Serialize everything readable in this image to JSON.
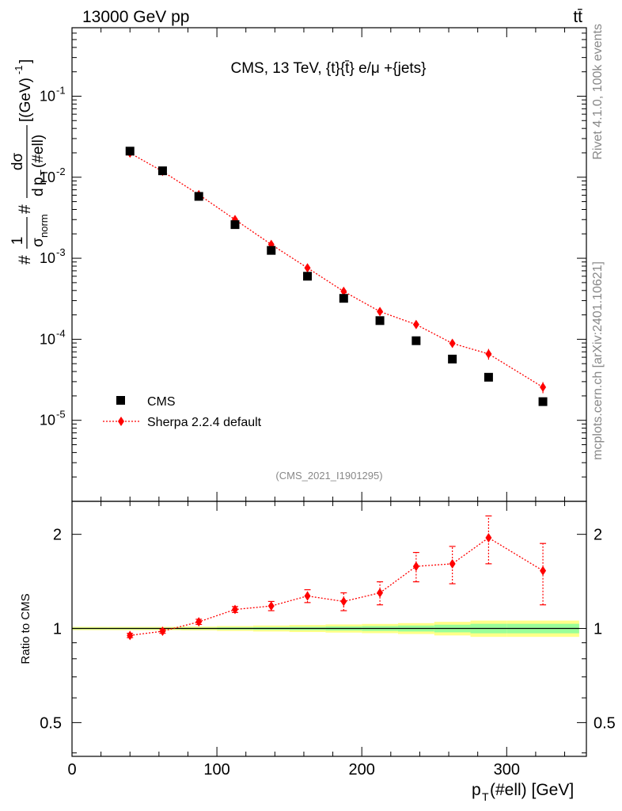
{
  "header": {
    "left": "13000 GeV pp",
    "right": "tt̄"
  },
  "side_labels": {
    "top": "Rivet 4.1.0,  100k events",
    "bottom": "mcplots.cern.ch [arXiv:2401.10621]"
  },
  "analysis_id": "(CMS_2021_I1901295)",
  "colors": {
    "data": "#000000",
    "mc": "#ff0000",
    "band_inner": "#99ff99",
    "band_outer": "#ffff88"
  },
  "chart_data": [
    {
      "type": "scatter",
      "panel": "main",
      "title": "CMS, 13 TeV, {t}{t̄} e/μ +{jets}",
      "ylabel": "#σnorm #d p_T(#ell)",
      "ylabel_parts": {
        "hash1": "#",
        "num1": "1",
        "sigma": "σ",
        "norm": "norm",
        "hash2": "#",
        "num2": "dσ",
        "d": "d",
        "p": "p",
        "T": "T",
        "arg": "(#ell)",
        "units": "[(GeV)",
        "units_exp": "-1",
        "units_close": "]"
      },
      "yscale": "log",
      "xlim": [
        0,
        355
      ],
      "ylim": [
        1e-06,
        0.7
      ],
      "ytick_labels": [
        {
          "base": "10",
          "exp": "-1",
          "value": 0.1
        },
        {
          "base": "10",
          "exp": "-2",
          "value": 0.01
        },
        {
          "base": "10",
          "exp": "-3",
          "value": 0.001
        },
        {
          "base": "10",
          "exp": "-4",
          "value": 0.0001
        },
        {
          "base": "10",
          "exp": "-5",
          "value": 1e-05
        }
      ],
      "legend": {
        "position": "lower-left",
        "entries": [
          "CMS",
          "Sherpa 2.2.4 default"
        ]
      },
      "series": [
        {
          "name": "CMS",
          "marker": "square",
          "x": [
            40,
            62.5,
            87.5,
            112.5,
            137.5,
            162.5,
            187.5,
            212.5,
            237.5,
            262.5,
            287.5,
            325
          ],
          "y": [
            0.021,
            0.012,
            0.0058,
            0.0026,
            0.00125,
            0.0006,
            0.00032,
            0.00017,
            9.6e-05,
            5.7e-05,
            3.4e-05,
            1.7e-05
          ]
        },
        {
          "name": "Sherpa 2.2.4 default",
          "marker": "diamond",
          "linestyle": "dotted",
          "x": [
            40,
            62.5,
            87.5,
            112.5,
            137.5,
            162.5,
            187.5,
            212.5,
            237.5,
            262.5,
            287.5,
            325
          ],
          "y": [
            0.0199,
            0.0118,
            0.0061,
            0.003,
            0.00148,
            0.00076,
            0.00039,
            0.00022,
            0.000152,
            8.9e-05,
            6.6e-05,
            2.56e-05
          ],
          "yerr": [
            0.0003,
            0.0002,
            0.0001,
            5e-05,
            4e-05,
            3e-05,
            2e-05,
            1.2e-05,
            1.1e-05,
            1e-05,
            1e-05,
            4e-06
          ]
        }
      ]
    },
    {
      "type": "line",
      "panel": "ratio",
      "ylabel": "Ratio to CMS",
      "xlabel": "p_T(#ell) [GeV]",
      "xlabel_parts": {
        "p": "p",
        "T": "T",
        "rest": "(#ell) [GeV]"
      },
      "yscale": "log",
      "xlim": [
        0,
        355
      ],
      "ylim": [
        0.39,
        2.55
      ],
      "xtick_labels": [
        "0",
        "100",
        "200",
        "300"
      ],
      "xticks": [
        0,
        100,
        200,
        300
      ],
      "ytick_labels": [
        "0.5",
        "1",
        "2"
      ],
      "yticks": [
        0.5,
        1,
        2
      ],
      "reference_line": 1,
      "band": {
        "edges": [
          0,
          25,
          50,
          75,
          100,
          125,
          150,
          175,
          200,
          225,
          250,
          275,
          300,
          350
        ],
        "inner": [
          0.005,
          0.005,
          0.005,
          0.006,
          0.008,
          0.01,
          0.012,
          0.015,
          0.018,
          0.022,
          0.028,
          0.035,
          0.035
        ],
        "outer": [
          0.012,
          0.012,
          0.012,
          0.014,
          0.018,
          0.022,
          0.026,
          0.03,
          0.034,
          0.04,
          0.05,
          0.06,
          0.06
        ]
      },
      "series": [
        {
          "name": "Sherpa 2.2.4 default",
          "x": [
            40,
            62.5,
            87.5,
            112.5,
            137.5,
            162.5,
            187.5,
            212.5,
            237.5,
            262.5,
            287.5,
            325
          ],
          "y": [
            0.95,
            0.98,
            1.05,
            1.15,
            1.18,
            1.27,
            1.22,
            1.3,
            1.58,
            1.61,
            1.95,
            1.53
          ],
          "yerr": [
            0.015,
            0.015,
            0.02,
            0.025,
            0.04,
            0.06,
            0.08,
            0.11,
            0.17,
            0.22,
            0.34,
            0.34
          ]
        }
      ]
    }
  ]
}
